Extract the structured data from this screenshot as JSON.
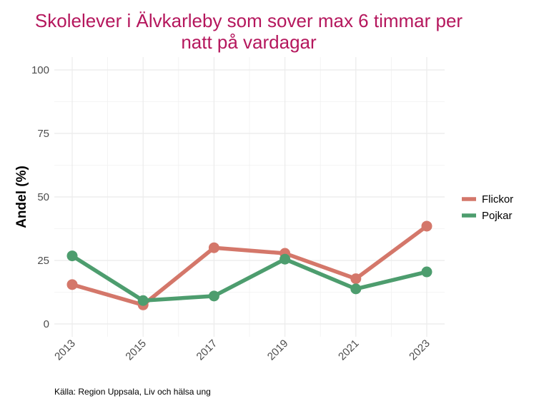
{
  "chart_data": {
    "type": "line",
    "title_lines": [
      "Skolelever i Älvkarleby som sover max 6 timmar per",
      "natt på vardagar"
    ],
    "ylabel": "Andel (%)",
    "xlabel": "",
    "x": [
      "2013",
      "2015",
      "2017",
      "2019",
      "2021",
      "2023"
    ],
    "ylim": [
      0,
      100
    ],
    "yticks": [
      "0",
      "25",
      "50",
      "75",
      "100"
    ],
    "series": [
      {
        "name": "Flickor",
        "color": "#d4776a",
        "values": [
          15.5,
          7.5,
          30,
          27.8,
          17.8,
          38.5
        ]
      },
      {
        "name": "Pojkar",
        "color": "#4d9d6e",
        "values": [
          26.8,
          9.2,
          11,
          25.5,
          13.8,
          20.5
        ]
      }
    ],
    "grid": true,
    "legend_position": "right",
    "caption": "Källa: Region Uppsala, Liv och hälsa ung"
  }
}
